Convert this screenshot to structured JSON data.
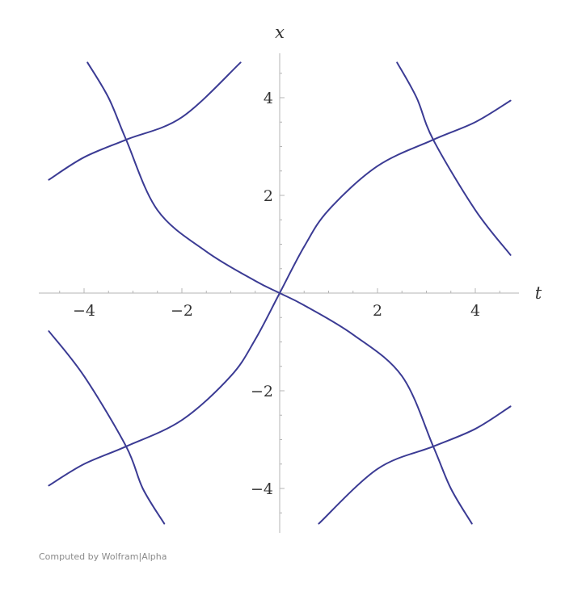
{
  "chart_data": {
    "type": "line",
    "title": "",
    "xlabel": "t",
    "ylabel": "x",
    "xlim": [
      -4.9,
      4.9
    ],
    "ylim": [
      -4.9,
      4.9
    ],
    "x_ticks": [
      -4,
      -2,
      2,
      4
    ],
    "y_ticks": [
      4,
      2,
      -2,
      -4
    ],
    "x_tick_labels": [
      "−4",
      "−2",
      "2",
      "4"
    ],
    "y_tick_labels": [
      "4",
      "2",
      "−2",
      "−4"
    ],
    "grid": false,
    "line_color": "#3b3b94",
    "series": [
      {
        "points": [
          [
            -4.72,
            2.32
          ],
          [
            -4.0,
            2.78
          ],
          [
            -3.14,
            3.14
          ],
          [
            -2.0,
            3.6
          ],
          [
            -0.8,
            4.72
          ]
        ]
      },
      {
        "points": [
          [
            -3.93,
            4.72
          ],
          [
            -3.5,
            4.0
          ],
          [
            -3.14,
            3.14
          ],
          [
            -2.5,
            1.7
          ],
          [
            -1.5,
            0.85
          ],
          [
            -0.5,
            0.25
          ],
          [
            0.0,
            0.0
          ],
          [
            0.5,
            -0.25
          ],
          [
            1.5,
            -0.85
          ],
          [
            2.5,
            -1.7
          ],
          [
            3.14,
            -3.14
          ],
          [
            3.5,
            -4.0
          ],
          [
            3.93,
            -4.72
          ]
        ]
      },
      {
        "points": [
          [
            -4.72,
            -3.94
          ],
          [
            -4.0,
            -3.5
          ],
          [
            -3.14,
            -3.14
          ],
          [
            -2.0,
            -2.6
          ],
          [
            -1.0,
            -1.7
          ],
          [
            -0.5,
            -0.95
          ],
          [
            0.0,
            0.0
          ],
          [
            0.5,
            0.95
          ],
          [
            1.0,
            1.7
          ],
          [
            2.0,
            2.6
          ],
          [
            3.14,
            3.14
          ],
          [
            4.0,
            3.5
          ],
          [
            4.72,
            3.94
          ]
        ]
      },
      {
        "points": [
          [
            -4.72,
            -0.78
          ],
          [
            -4.0,
            -1.7
          ],
          [
            -3.14,
            -3.14
          ],
          [
            -2.8,
            -4.0
          ],
          [
            -2.36,
            -4.72
          ]
        ]
      },
      {
        "points": [
          [
            2.4,
            4.72
          ],
          [
            2.8,
            4.0
          ],
          [
            3.14,
            3.14
          ],
          [
            4.0,
            1.7
          ],
          [
            4.72,
            0.78
          ]
        ]
      },
      {
        "points": [
          [
            0.8,
            -4.72
          ],
          [
            2.0,
            -3.6
          ],
          [
            3.14,
            -3.14
          ],
          [
            4.0,
            -2.78
          ],
          [
            4.72,
            -2.32
          ]
        ]
      }
    ]
  },
  "footer": {
    "credit": "Computed by Wolfram|Alpha"
  }
}
